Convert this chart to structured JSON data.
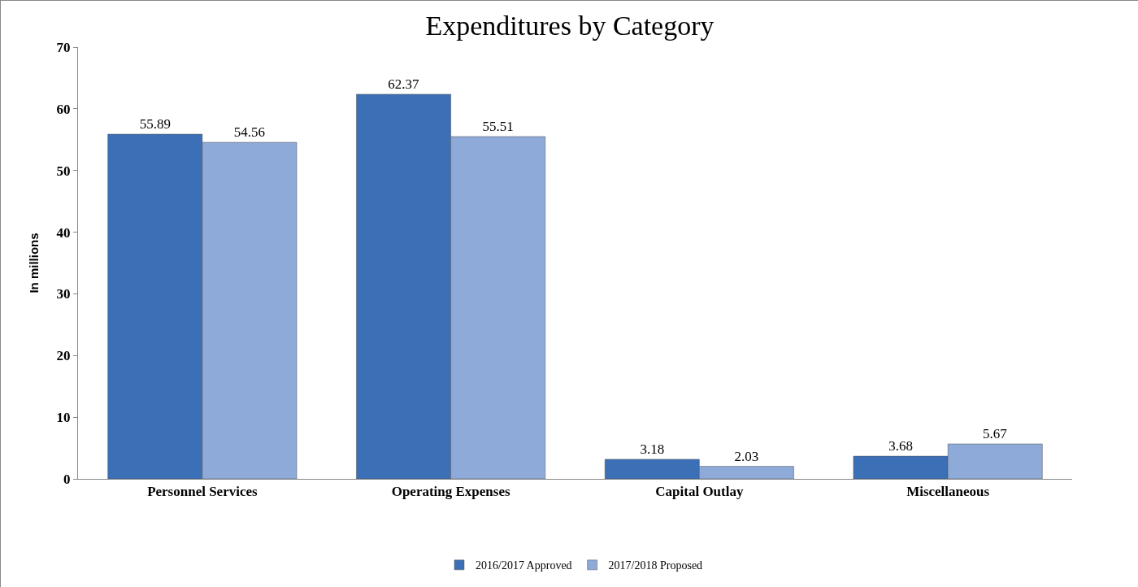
{
  "chart_data": {
    "type": "bar",
    "title": "Expenditures by Category",
    "ylabel": "In millions",
    "categories": [
      "Personnel Services",
      "Operating Expenses",
      "Capital Outlay",
      "Miscellaneous"
    ],
    "series": [
      {
        "name": "2016/2017 Approved",
        "color": "#3b6fb6",
        "values": [
          55.89,
          62.37,
          3.18,
          3.68
        ]
      },
      {
        "name": "2017/2018 Proposed",
        "color": "#8eaad8",
        "values": [
          54.56,
          55.51,
          2.03,
          5.67
        ]
      }
    ],
    "ylim": [
      0,
      70
    ],
    "yticks": [
      0,
      10,
      20,
      30,
      40,
      50,
      60,
      70
    ],
    "grid": false,
    "legend": "bottom",
    "data_labels": true
  }
}
